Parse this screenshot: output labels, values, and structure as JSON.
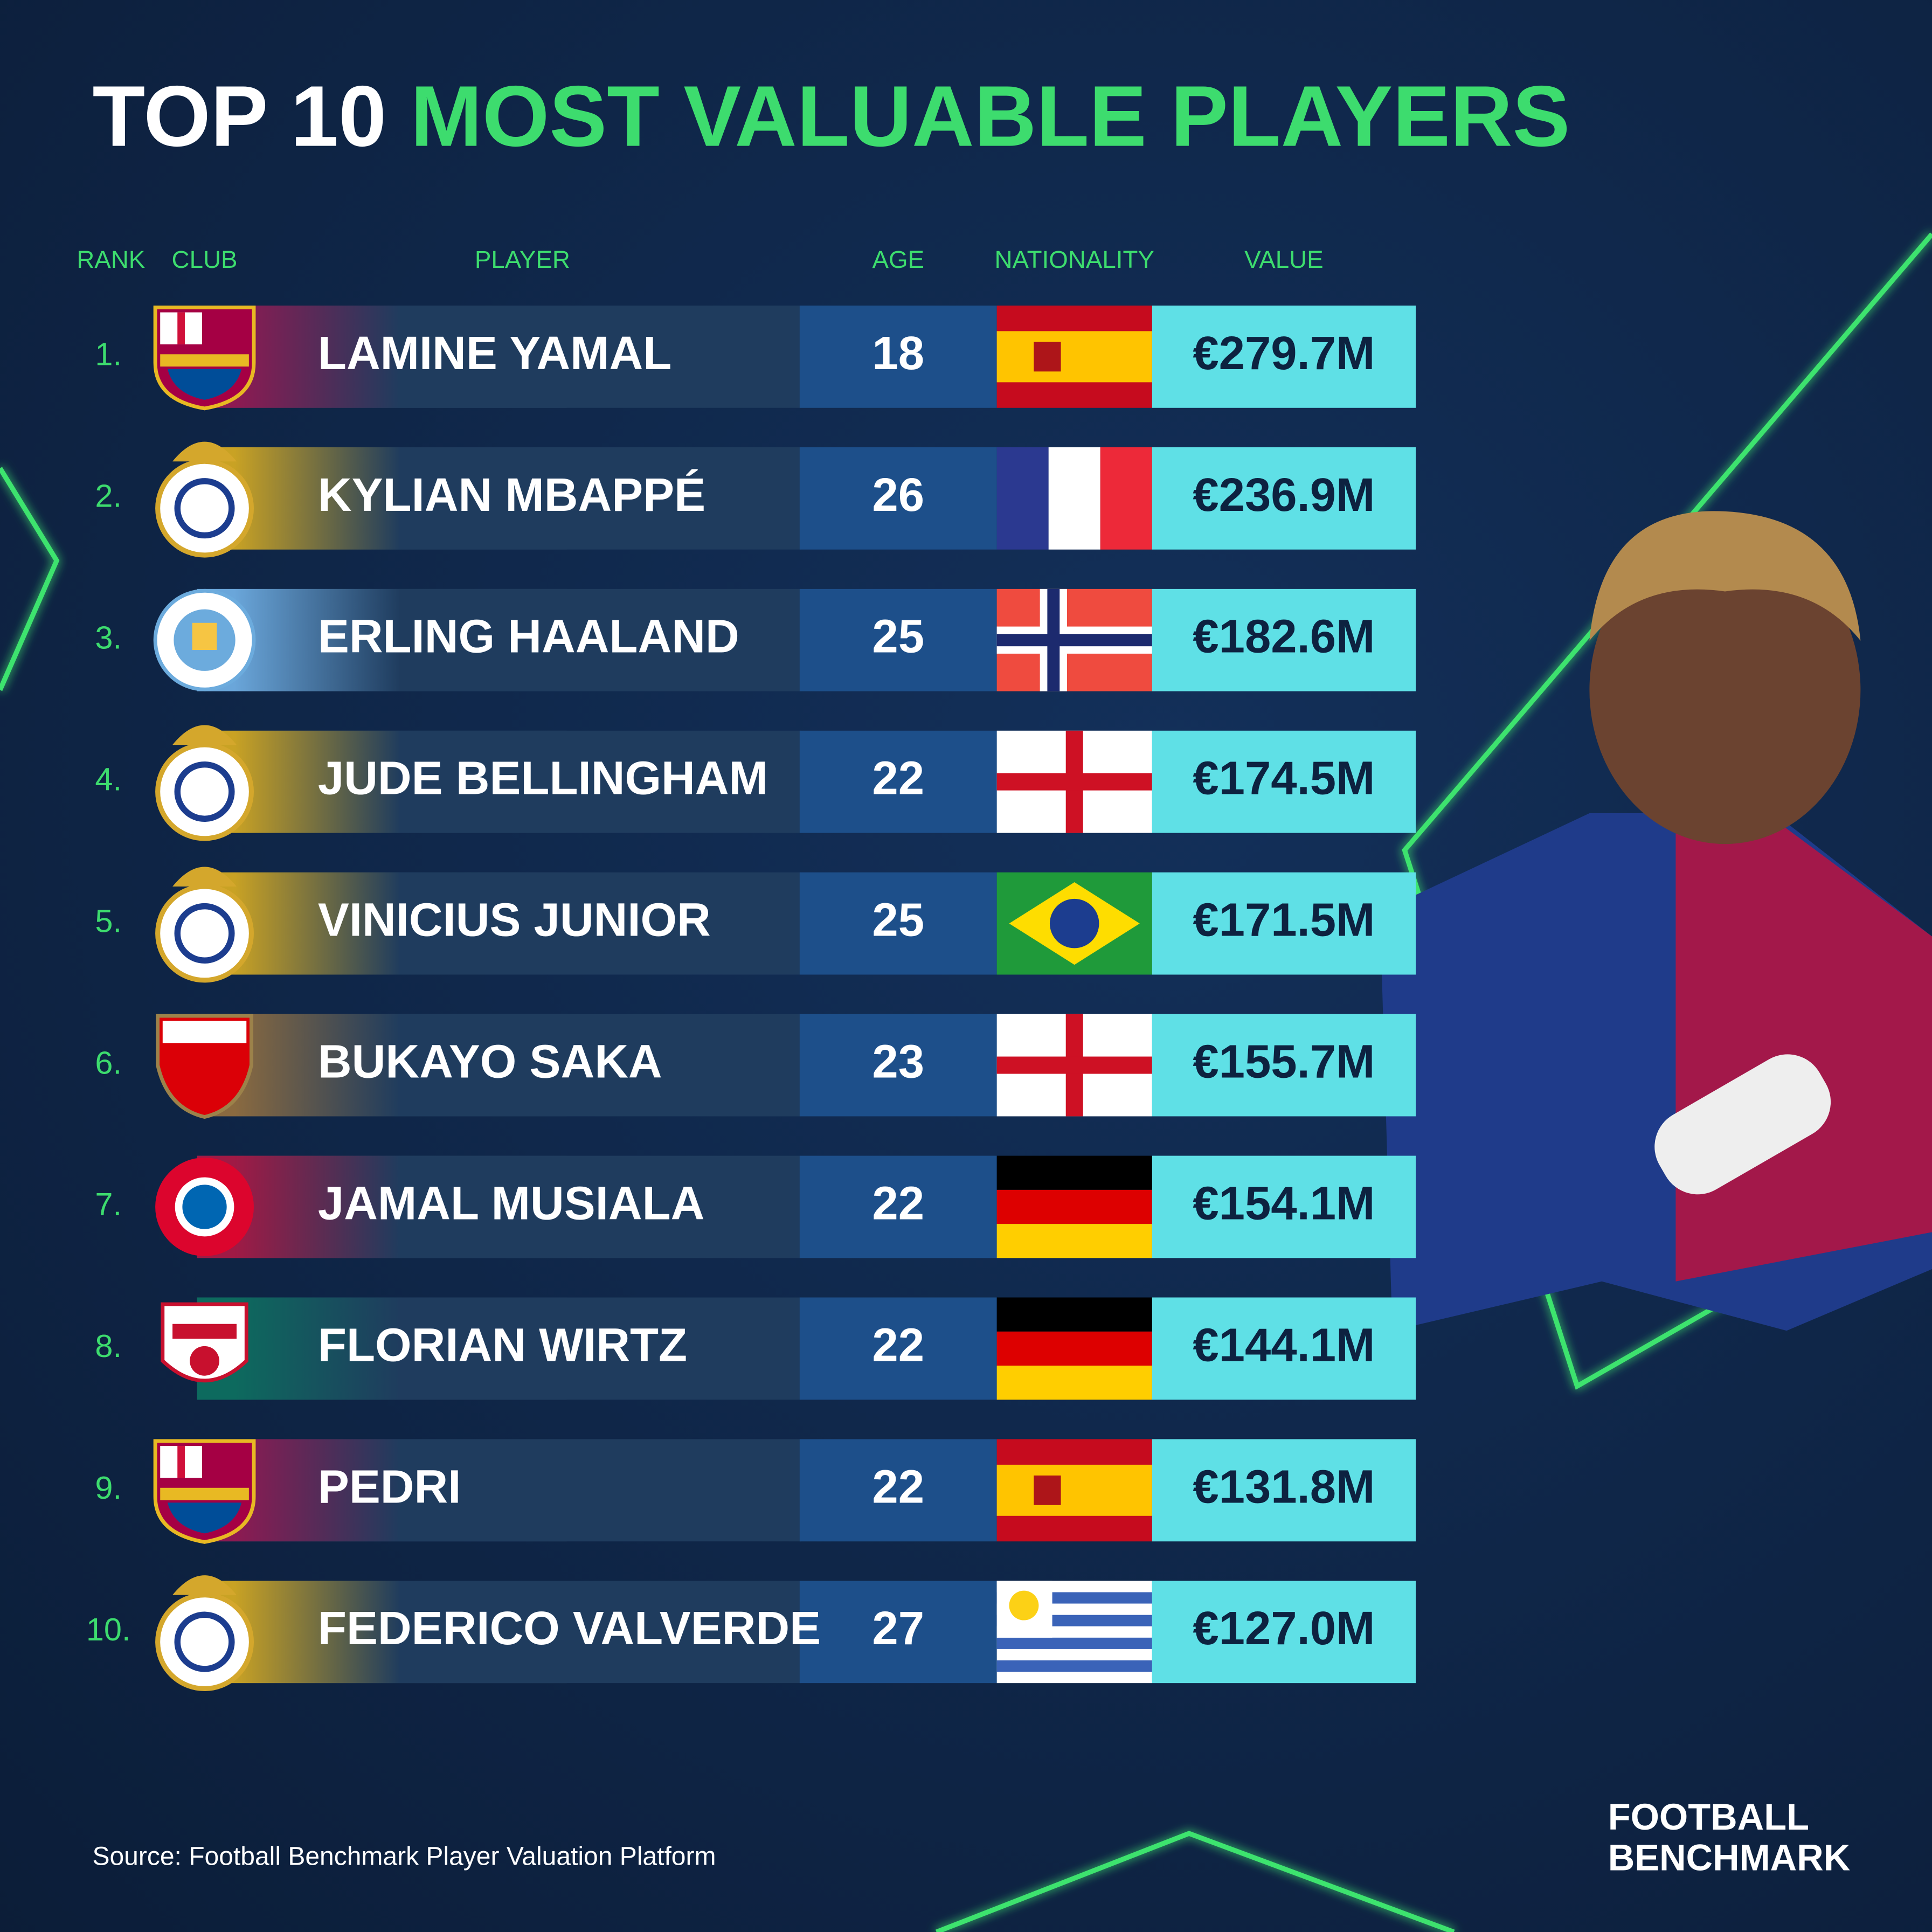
{
  "title": {
    "lead": "TOP 10",
    "accent": "MOST VALUABLE PLAYERS"
  },
  "table": {
    "headers": [
      "RANK",
      "CLUB",
      "PLAYER",
      "AGE",
      "NATIONALITY",
      "VALUE"
    ],
    "rows": [
      {
        "rank": "1.",
        "player": "LAMINE YAMAL",
        "age": 18,
        "value": "€279.7M",
        "band_color": "#8e1a52"
      },
      {
        "rank": "2.",
        "player": "KYLIAN MBAPPÉ",
        "age": 26,
        "value": "€236.9M",
        "band_color": "#c9a224"
      },
      {
        "rank": "3.",
        "player": "ERLING HAALAND",
        "age": 25,
        "value": "€182.6M",
        "band_color": "#6aa6da"
      },
      {
        "rank": "4.",
        "player": "JUDE BELLINGHAM",
        "age": 22,
        "value": "€174.5M",
        "band_color": "#c9a224"
      },
      {
        "rank": "5.",
        "player": "VINICIUS JUNIOR",
        "age": 25,
        "value": "€171.5M",
        "band_color": "#c9a224"
      },
      {
        "rank": "6.",
        "player": "BUKAYO SAKA",
        "age": 23,
        "value": "€155.7M",
        "band_color": "#8a6a40"
      },
      {
        "rank": "7.",
        "player": "JAMAL MUSIALA",
        "age": 22,
        "value": "€154.1M",
        "band_color": "#a01a45"
      },
      {
        "rank": "8.",
        "player": "FLORIAN WIRTZ",
        "age": 22,
        "value": "€144.1M",
        "band_color": "#0d6a5e"
      },
      {
        "rank": "9.",
        "player": "PEDRI",
        "age": 22,
        "value": "€131.8M",
        "band_color": "#8e1a52"
      },
      {
        "rank": "10.",
        "player": "FEDERICO VALVERDE",
        "age": 27,
        "value": "€127.0M",
        "band_color": "#c9a224"
      }
    ]
  },
  "source": "Source: Football Benchmark Player Valuation Platform",
  "logo": [
    "FOOTBALL",
    "BENCHMARK"
  ]
}
